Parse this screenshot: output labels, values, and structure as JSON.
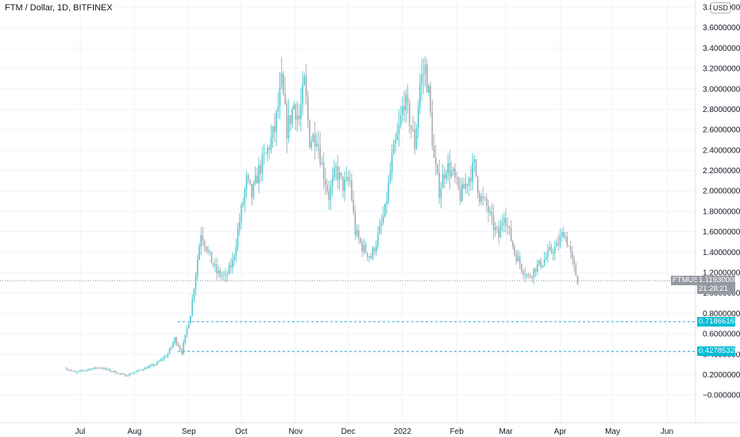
{
  "header": {
    "title": "FTM / Dollar, 1D, BITFINEX",
    "currency_badge": "USD"
  },
  "price_tags": {
    "symbol": "FTMUSD",
    "last_price": "1.11930000",
    "countdown": "21:28:21",
    "level_upper": "0.71866168",
    "level_lower": "0.42785320"
  },
  "colors": {
    "up": "#4fc9cf",
    "down": "#a7aaaf",
    "level_line": "#26a9c4",
    "price_line": "#9598a1",
    "tag_dark": "#787b86",
    "tag_teal": "#00bcd4"
  },
  "chart_data": {
    "type": "candlestick",
    "title": "FTM / Dollar, 1D, BITFINEX",
    "ylim": [
      -0.1,
      3.8
    ],
    "y_ticks": [
      "3.80000000",
      "3.60000000",
      "3.40000000",
      "3.20000000",
      "3.00000000",
      "2.80000000",
      "2.60000000",
      "2.40000000",
      "2.20000000",
      "2.00000000",
      "1.80000000",
      "1.60000000",
      "1.40000000",
      "1.20000000",
      "1.00000000",
      "0.80000000",
      "0.60000000",
      "0.40000000",
      "0.20000000",
      "−0.00000000"
    ],
    "y_tick_values": [
      3.8,
      3.6,
      3.4,
      3.2,
      3.0,
      2.8,
      2.6,
      2.4,
      2.2,
      2.0,
      1.8,
      1.6,
      1.4,
      1.2,
      1.0,
      0.8,
      0.6,
      0.4,
      0.2,
      0.0
    ],
    "x_labels": [
      "Jul",
      "Aug",
      "Sep",
      "Oct",
      "Nov",
      "Dec",
      "2022",
      "Feb",
      "Mar",
      "Apr",
      "May",
      "Jun"
    ],
    "x_label_months": [
      "2021-07",
      "2021-08",
      "2021-09",
      "2021-10",
      "2021-11",
      "2021-12",
      "2022-01",
      "2022-02",
      "2022-03",
      "2022-04",
      "2022-05",
      "2022-06"
    ],
    "horizontal_levels": [
      0.71866168,
      0.4278532
    ],
    "last_price": 1.1193,
    "price_path": [
      [
        "2021-06-23",
        0.26
      ],
      [
        "2021-06-28",
        0.22
      ],
      [
        "2021-07-05",
        0.25
      ],
      [
        "2021-07-12",
        0.27
      ],
      [
        "2021-07-18",
        0.24
      ],
      [
        "2021-07-27",
        0.19
      ],
      [
        "2021-08-05",
        0.25
      ],
      [
        "2021-08-13",
        0.3
      ],
      [
        "2021-08-20",
        0.4
      ],
      [
        "2021-08-24",
        0.55
      ],
      [
        "2021-08-28",
        0.42
      ],
      [
        "2021-09-02",
        0.8
      ],
      [
        "2021-09-05",
        1.2
      ],
      [
        "2021-09-08",
        1.6
      ],
      [
        "2021-09-10",
        1.5
      ],
      [
        "2021-09-13",
        1.35
      ],
      [
        "2021-09-17",
        1.2
      ],
      [
        "2021-09-22",
        1.15
      ],
      [
        "2021-09-26",
        1.3
      ],
      [
        "2021-10-01",
        1.8
      ],
      [
        "2021-10-04",
        2.1
      ],
      [
        "2021-10-07",
        1.95
      ],
      [
        "2021-10-11",
        2.2
      ],
      [
        "2021-10-15",
        2.35
      ],
      [
        "2021-10-20",
        2.6
      ],
      [
        "2021-10-24",
        3.05
      ],
      [
        "2021-10-27",
        2.6
      ],
      [
        "2021-10-31",
        2.85
      ],
      [
        "2021-11-03",
        2.7
      ],
      [
        "2021-11-06",
        3.05
      ],
      [
        "2021-11-09",
        2.5
      ],
      [
        "2021-11-13",
        2.55
      ],
      [
        "2021-11-16",
        2.25
      ],
      [
        "2021-11-20",
        1.95
      ],
      [
        "2021-11-24",
        2.2
      ],
      [
        "2021-11-28",
        2.05
      ],
      [
        "2021-12-02",
        2.1
      ],
      [
        "2021-12-05",
        1.6
      ],
      [
        "2021-12-09",
        1.45
      ],
      [
        "2021-12-14",
        1.35
      ],
      [
        "2021-12-18",
        1.55
      ],
      [
        "2021-12-22",
        1.8
      ],
      [
        "2021-12-26",
        2.3
      ],
      [
        "2021-12-30",
        2.6
      ],
      [
        "2022-01-02",
        2.9
      ],
      [
        "2022-01-05",
        2.7
      ],
      [
        "2022-01-08",
        2.45
      ],
      [
        "2022-01-11",
        3.05
      ],
      [
        "2022-01-14",
        3.2
      ],
      [
        "2022-01-16",
        2.95
      ],
      [
        "2022-01-19",
        2.3
      ],
      [
        "2022-01-22",
        2.0
      ],
      [
        "2022-01-26",
        2.25
      ],
      [
        "2022-01-30",
        2.15
      ],
      [
        "2022-02-03",
        1.95
      ],
      [
        "2022-02-07",
        2.1
      ],
      [
        "2022-02-11",
        2.25
      ],
      [
        "2022-02-14",
        1.95
      ],
      [
        "2022-02-18",
        1.85
      ],
      [
        "2022-02-22",
        1.65
      ],
      [
        "2022-02-25",
        1.55
      ],
      [
        "2022-02-28",
        1.8
      ],
      [
        "2022-03-02",
        1.65
      ],
      [
        "2022-03-06",
        1.4
      ],
      [
        "2022-03-10",
        1.25
      ],
      [
        "2022-03-14",
        1.15
      ],
      [
        "2022-03-18",
        1.25
      ],
      [
        "2022-03-22",
        1.3
      ],
      [
        "2022-03-26",
        1.4
      ],
      [
        "2022-03-30",
        1.45
      ],
      [
        "2022-04-03",
        1.6
      ],
      [
        "2022-04-06",
        1.45
      ],
      [
        "2022-04-08",
        1.3
      ],
      [
        "2022-04-11",
        1.12
      ]
    ]
  }
}
